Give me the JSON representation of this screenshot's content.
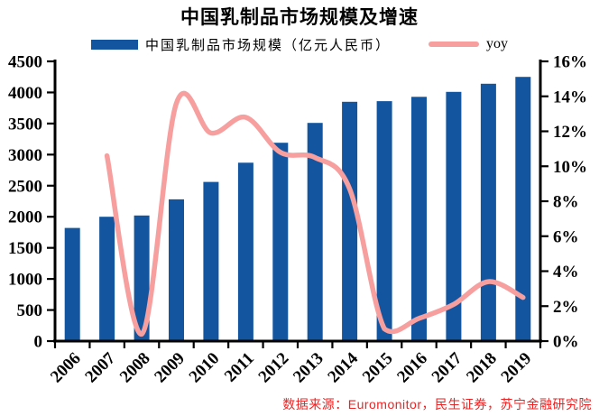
{
  "header": {
    "title": "中国乳制品市场规模及增速"
  },
  "legend": {
    "bars_label": "中国乳制品市场规模（亿元人民币）",
    "line_label": "yoy"
  },
  "source": {
    "text": "数据来源：Euromonitor，民生证券，苏宁金融研究院"
  },
  "colors": {
    "bar": "#13569F",
    "line": "#F79E9E",
    "axis": "#000000",
    "text": "#000000",
    "source_text": "#EE2222",
    "background": "#FFFFFF"
  },
  "chart_data": {
    "type": "bar",
    "title": "中国乳制品市场规模及增速",
    "categories": [
      "2006",
      "2007",
      "2008",
      "2009",
      "2010",
      "2011",
      "2012",
      "2013",
      "2014",
      "2015",
      "2016",
      "2017",
      "2018",
      "2019"
    ],
    "series": [
      {
        "name": "中国乳制品市场规模（亿元人民币）",
        "type": "bar",
        "axis": "left",
        "values": [
          1820,
          2000,
          2020,
          2280,
          2560,
          2870,
          3190,
          3510,
          3850,
          3860,
          3930,
          4010,
          4140,
          4250
        ]
      },
      {
        "name": "yoy",
        "type": "line",
        "axis": "right",
        "values": [
          null,
          10.6,
          0.4,
          13.6,
          11.9,
          12.8,
          10.8,
          10.5,
          8.7,
          0.7,
          1.3,
          2.1,
          3.4,
          2.5
        ],
        "unit": "%"
      }
    ],
    "left_axis": {
      "min": 0,
      "max": 4500,
      "step": 500
    },
    "right_axis": {
      "min": 0,
      "max": 16,
      "step": 2,
      "format": "percent"
    },
    "legend_position": "top",
    "grid": false,
    "x_label_rotation": -45
  }
}
